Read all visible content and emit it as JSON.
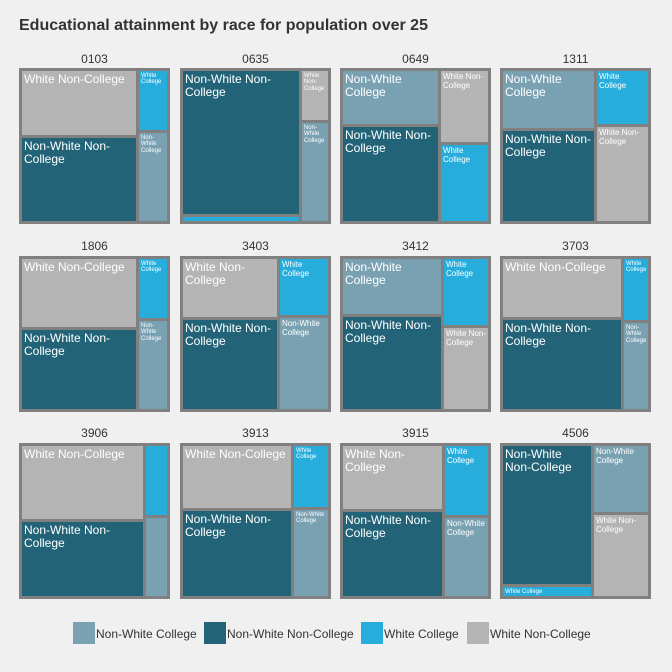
{
  "title": "Educational attainment by race for population over 25",
  "colors": {
    "Non-White College": "#7aa1b2",
    "Non-White Non-College": "#236377",
    "White College": "#27addc",
    "White Non-College": "#b4b4b4",
    "panel_border": "#808080",
    "background": "#f0f0f0"
  },
  "chart_data": {
    "type": "treemap",
    "title": "Educational attainment by race for population over 25",
    "legend_position": "bottom",
    "categories": [
      "Non-White College",
      "Non-White Non-College",
      "White College",
      "White Non-College"
    ],
    "panels": [
      {
        "name": "0103",
        "tiles": [
          {
            "category": "White Non-College",
            "label": "White Non-College",
            "value": 0.35
          },
          {
            "category": "Non-White Non-College",
            "label": "Non-White Non-College",
            "value": 0.45
          },
          {
            "category": "White College",
            "label": "White College",
            "value": 0.08
          },
          {
            "category": "Non-White College",
            "label": "Non-White College",
            "value": 0.12
          }
        ]
      },
      {
        "name": "0635",
        "tiles": [
          {
            "category": "Non-White Non-College",
            "label": "Non-White Non-College",
            "value": 0.8
          },
          {
            "category": "White College",
            "label": "",
            "value": 0.02
          },
          {
            "category": "White Non-College",
            "label": "White Non-College",
            "value": 0.06
          },
          {
            "category": "Non-White College",
            "label": "Non-White College",
            "value": 0.12
          }
        ]
      },
      {
        "name": "0649",
        "tiles": [
          {
            "category": "Non-White College",
            "label": "Non-White College",
            "value": 0.24
          },
          {
            "category": "Non-White Non-College",
            "label": "Non-White Non-College",
            "value": 0.43
          },
          {
            "category": "White Non-College",
            "label": "White Non-College",
            "value": 0.16
          },
          {
            "category": "White College",
            "label": "White College",
            "value": 0.17
          }
        ]
      },
      {
        "name": "1311",
        "tiles": [
          {
            "category": "Non-White College",
            "label": "Non-White College",
            "value": 0.25
          },
          {
            "category": "Non-White Non-College",
            "label": "Non-White Non-College",
            "value": 0.39
          },
          {
            "category": "White College",
            "label": "White College",
            "value": 0.13
          },
          {
            "category": "White Non-College",
            "label": "White Non-College",
            "value": 0.23
          }
        ]
      },
      {
        "name": "1806",
        "tiles": [
          {
            "category": "White Non-College",
            "label": "White Non-College",
            "value": 0.37
          },
          {
            "category": "Non-White Non-College",
            "label": "Non-White Non-College",
            "value": 0.43
          },
          {
            "category": "White College",
            "label": "White College",
            "value": 0.08
          },
          {
            "category": "Non-White College",
            "label": "Non-White College",
            "value": 0.12
          }
        ]
      },
      {
        "name": "3403",
        "tiles": [
          {
            "category": "White Non-College",
            "label": "White Non-College",
            "value": 0.26
          },
          {
            "category": "Non-White Non-College",
            "label": "Non-White Non-College",
            "value": 0.4
          },
          {
            "category": "White College",
            "label": "White College",
            "value": 0.13
          },
          {
            "category": "Non-White College",
            "label": "Non-White College",
            "value": 0.21
          }
        ]
      },
      {
        "name": "3412",
        "tiles": [
          {
            "category": "Non-White College",
            "label": "Non-White College",
            "value": 0.26
          },
          {
            "category": "Non-White Non-College",
            "label": "Non-White Non-College",
            "value": 0.43
          },
          {
            "category": "White College",
            "label": "White College",
            "value": 0.14
          },
          {
            "category": "White Non-College",
            "label": "White Non-College",
            "value": 0.17
          }
        ]
      },
      {
        "name": "3703",
        "tiles": [
          {
            "category": "White Non-College",
            "label": "White Non-College",
            "value": 0.33
          },
          {
            "category": "Non-White Non-College",
            "label": "Non-White Non-College",
            "value": 0.5
          },
          {
            "category": "White College",
            "label": "White College",
            "value": 0.07
          },
          {
            "category": "Non-White College",
            "label": "Non-White College",
            "value": 0.1
          }
        ]
      },
      {
        "name": "3906",
        "tiles": [
          {
            "category": "White Non-College",
            "label": "White Non-College",
            "value": 0.42
          },
          {
            "category": "Non-White Non-College",
            "label": "Non-White Non-College",
            "value": 0.43
          },
          {
            "category": "White College",
            "label": "",
            "value": 0.07
          },
          {
            "category": "Non-White College",
            "label": "",
            "value": 0.08
          }
        ]
      },
      {
        "name": "3913",
        "tiles": [
          {
            "category": "White Non-College",
            "label": "White Non-College",
            "value": 0.32
          },
          {
            "category": "Non-White Non-College",
            "label": "Non-White Non-College",
            "value": 0.44
          },
          {
            "category": "White College",
            "label": "White College",
            "value": 0.1
          },
          {
            "category": "Non-White College",
            "label": "Non-White College",
            "value": 0.14
          }
        ]
      },
      {
        "name": "3915",
        "tiles": [
          {
            "category": "White Non-College",
            "label": "White Non-College",
            "value": 0.3
          },
          {
            "category": "Non-White Non-College",
            "label": "Non-White Non-College",
            "value": 0.4
          },
          {
            "category": "White College",
            "label": "White College",
            "value": 0.14
          },
          {
            "category": "Non-White College",
            "label": "Non-White College",
            "value": 0.16
          }
        ]
      },
      {
        "name": "4506",
        "tiles": [
          {
            "category": "Non-White Non-College",
            "label": "Non-White Non-College",
            "value": 0.58
          },
          {
            "category": "White College",
            "label": "White College",
            "value": 0.04
          },
          {
            "category": "Non-White College",
            "label": "Non-White College",
            "value": 0.17
          },
          {
            "category": "White Non-College",
            "label": "White Non-College",
            "value": 0.21
          }
        ]
      }
    ]
  }
}
